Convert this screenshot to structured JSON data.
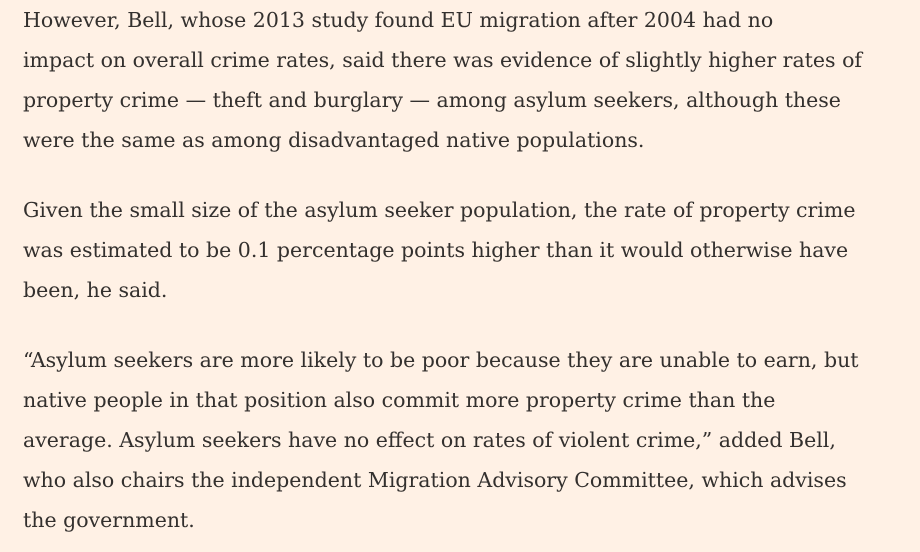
{
  "article": {
    "paragraphs": [
      {
        "lines": [
          "However, Bell, whose 2013 study found EU migration after 2004 had no",
          "impact on overall crime rates, said there was evidence of slightly higher rates of",
          "property crime — theft and burglary — among asylum seekers, although these",
          "were the same as among disadvantaged native populations."
        ]
      },
      {
        "lines": [
          "Given the small size of the asylum seeker population, the rate of property crime",
          "was estimated to be 0.1 percentage points higher than it would otherwise have",
          "been, he said."
        ]
      },
      {
        "lines": [
          "“Asylum seekers are more likely to be poor because they are unable to earn, but",
          "native people in that position also commit more property crime than the",
          "average. Asylum seekers have no effect on rates of violent crime,” added Bell,",
          "who also chairs the independent Migration Advisory Committee, which advises",
          "the government."
        ]
      }
    ]
  }
}
